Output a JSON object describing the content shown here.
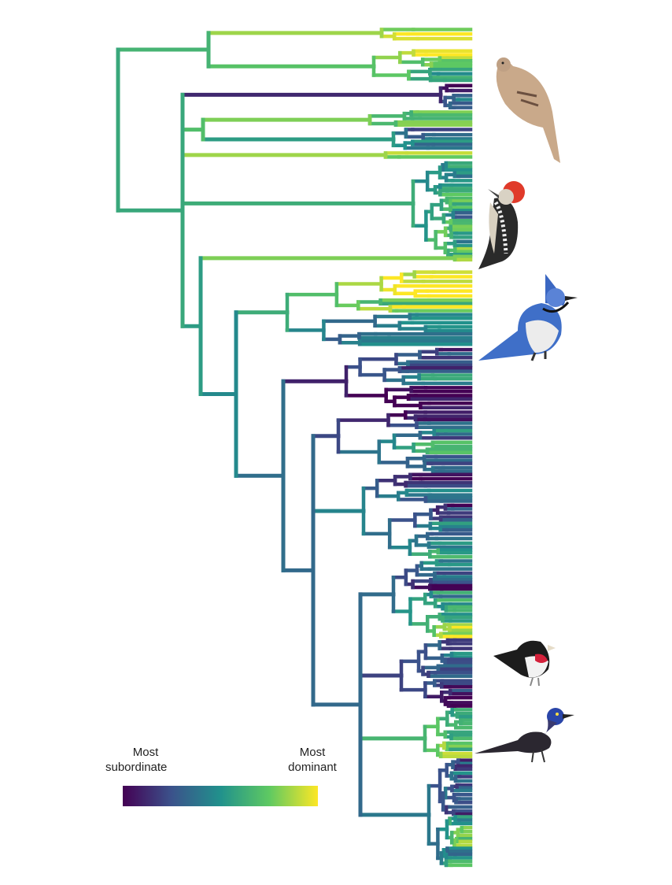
{
  "legend": {
    "low_label_line1": "Most",
    "low_label_line2": "subordinate",
    "high_label_line1": "Most",
    "high_label_line2": "dominant",
    "colors": [
      "#440154",
      "#3b528b",
      "#21918c",
      "#5ec962",
      "#fde725"
    ]
  },
  "birds": [
    "mourning-dove",
    "red-bellied-woodpecker",
    "blue-jay",
    "rose-breasted-grosbeak",
    "common-grackle"
  ]
}
